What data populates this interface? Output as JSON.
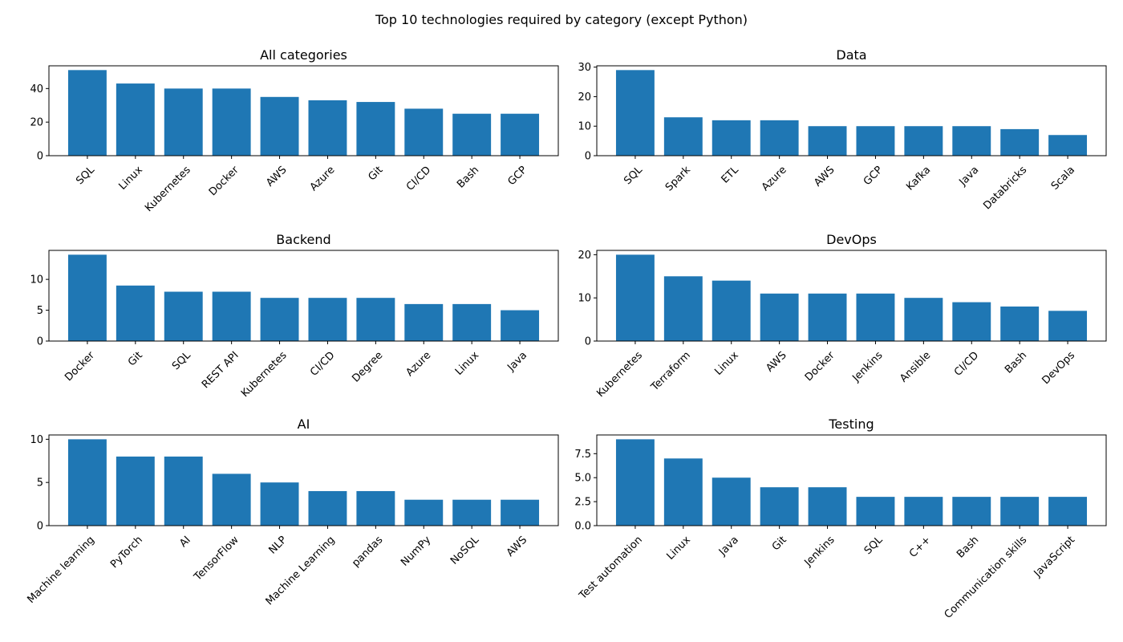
{
  "suptitle": "Top 10 technologies required by category (except Python)",
  "bar_color": "#1f77b4",
  "chart_data": [
    {
      "type": "bar",
      "title": "All categories",
      "categories": [
        "SQL",
        "Linux",
        "Kubernetes",
        "Docker",
        "AWS",
        "Azure",
        "Git",
        "CI/CD",
        "Bash",
        "GCP"
      ],
      "values": [
        51,
        43,
        40,
        40,
        35,
        33,
        32,
        28,
        25,
        25
      ],
      "ylim": [
        0,
        53.55
      ],
      "yticks": [
        0,
        20,
        40
      ],
      "ytick_labels": [
        "0",
        "20",
        "40"
      ]
    },
    {
      "type": "bar",
      "title": "Data",
      "categories": [
        "SQL",
        "Spark",
        "ETL",
        "Azure",
        "AWS",
        "GCP",
        "Kafka",
        "Java",
        "Databricks",
        "Scala"
      ],
      "values": [
        29,
        13,
        12,
        12,
        10,
        10,
        10,
        10,
        9,
        7
      ],
      "ylim": [
        0,
        30.45
      ],
      "yticks": [
        0,
        10,
        20,
        30
      ],
      "ytick_labels": [
        "0",
        "10",
        "20",
        "30"
      ]
    },
    {
      "type": "bar",
      "title": "Backend",
      "categories": [
        "Docker",
        "Git",
        "SQL",
        "REST API",
        "Kubernetes",
        "CI/CD",
        "Degree",
        "Azure",
        "Linux",
        "Java"
      ],
      "values": [
        14,
        9,
        8,
        8,
        7,
        7,
        7,
        6,
        6,
        5
      ],
      "ylim": [
        0,
        14.7
      ],
      "yticks": [
        0,
        5,
        10
      ],
      "ytick_labels": [
        "0",
        "5",
        "10"
      ]
    },
    {
      "type": "bar",
      "title": "DevOps",
      "categories": [
        "Kubernetes",
        "Terraform",
        "Linux",
        "AWS",
        "Docker",
        "Jenkins",
        "Ansible",
        "CI/CD",
        "Bash",
        "DevOps"
      ],
      "values": [
        20,
        15,
        14,
        11,
        11,
        11,
        10,
        9,
        8,
        7
      ],
      "ylim": [
        0,
        21
      ],
      "yticks": [
        0,
        10,
        20
      ],
      "ytick_labels": [
        "0",
        "10",
        "20"
      ]
    },
    {
      "type": "bar",
      "title": "AI",
      "categories": [
        "Machine learning",
        "PyTorch",
        "AI",
        "TensorFlow",
        "NLP",
        "Machine Learning",
        "pandas",
        "NumPy",
        "NoSQL",
        "AWS"
      ],
      "values": [
        10,
        8,
        8,
        6,
        5,
        4,
        4,
        3,
        3,
        3
      ],
      "ylim": [
        0,
        10.5
      ],
      "yticks": [
        0,
        5,
        10
      ],
      "ytick_labels": [
        "0",
        "5",
        "10"
      ]
    },
    {
      "type": "bar",
      "title": "Testing",
      "categories": [
        "Test automation",
        "Linux",
        "Java",
        "Git",
        "Jenkins",
        "SQL",
        "C++",
        "Bash",
        "Communication skills",
        "JavaScript"
      ],
      "values": [
        9,
        7,
        5,
        4,
        4,
        3,
        3,
        3,
        3,
        3
      ],
      "ylim": [
        0,
        9.45
      ],
      "yticks": [
        0,
        2.5,
        5,
        7.5
      ],
      "ytick_labels": [
        "0.0",
        "2.5",
        "5.0",
        "7.5"
      ]
    }
  ]
}
